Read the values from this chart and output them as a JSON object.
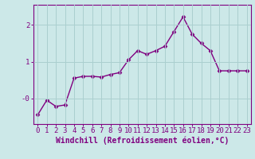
{
  "x": [
    0,
    1,
    2,
    3,
    4,
    5,
    6,
    7,
    8,
    9,
    10,
    11,
    12,
    13,
    14,
    15,
    16,
    17,
    18,
    19,
    20,
    21,
    22,
    23
  ],
  "y": [
    -0.45,
    -0.05,
    -0.22,
    -0.18,
    0.55,
    0.6,
    0.6,
    0.58,
    0.65,
    0.7,
    1.05,
    1.3,
    1.2,
    1.3,
    1.42,
    1.82,
    2.22,
    1.75,
    1.5,
    1.3,
    0.75,
    0.75,
    0.75,
    0.75
  ],
  "line_color": "#800080",
  "marker": "D",
  "markersize": 2.5,
  "linewidth": 1.0,
  "xlabel": "Windchill (Refroidissement éolien,°C)",
  "xlabel_fontsize": 7,
  "bg_color": "#cce8e8",
  "grid_color": "#aacfcf",
  "ylim": [
    -0.7,
    2.55
  ],
  "xlim": [
    -0.5,
    23.5
  ],
  "tick_fontsize": 6.5,
  "spine_color": "#800080",
  "ytick_positions": [
    0.0,
    1.0,
    2.0
  ],
  "ytick_labels": [
    "-0",
    "1",
    "2"
  ],
  "xticks": [
    0,
    1,
    2,
    3,
    4,
    5,
    6,
    7,
    8,
    9,
    10,
    11,
    12,
    13,
    14,
    15,
    16,
    17,
    18,
    19,
    20,
    21,
    22,
    23
  ]
}
